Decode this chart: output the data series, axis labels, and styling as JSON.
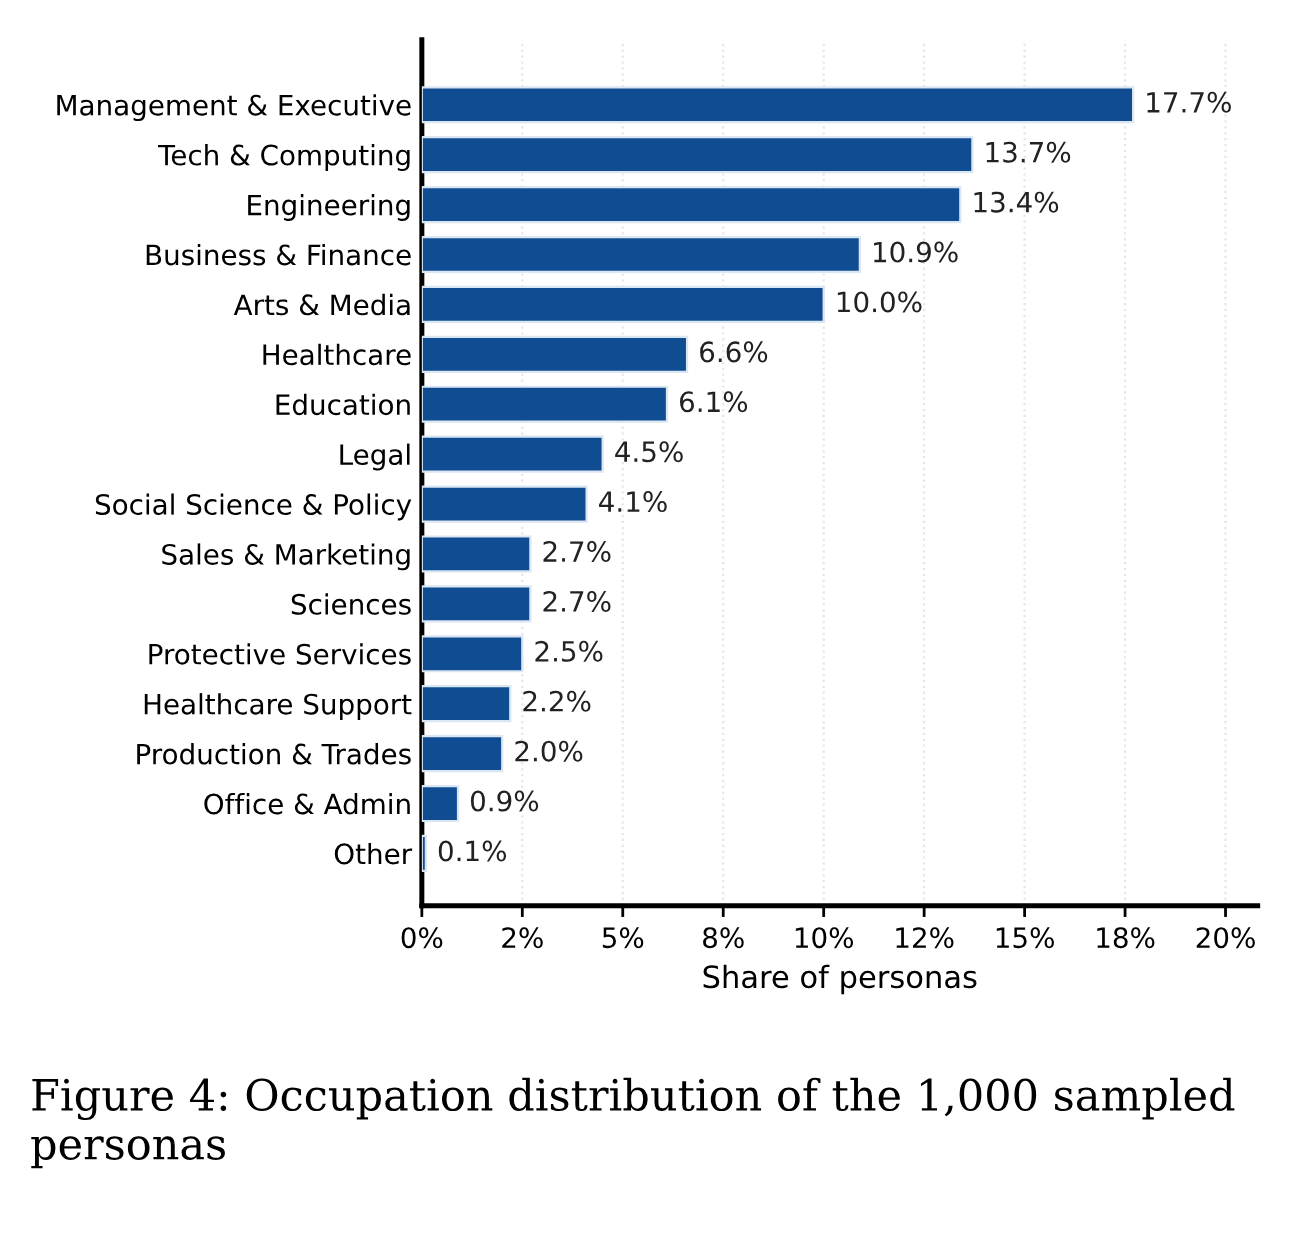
{
  "chart_data": {
    "type": "bar",
    "orientation": "horizontal",
    "xlabel": "Share of personas",
    "categories": [
      "Management & Executive",
      "Tech & Computing",
      "Engineering",
      "Business & Finance",
      "Arts & Media",
      "Healthcare",
      "Education",
      "Legal",
      "Social Science & Policy",
      "Sales & Marketing",
      "Sciences",
      "Protective Services",
      "Healthcare Support",
      "Production & Trades",
      "Office & Admin",
      "Other"
    ],
    "values": [
      17.7,
      13.7,
      13.4,
      10.9,
      10.0,
      6.6,
      6.1,
      4.5,
      4.1,
      2.7,
      2.7,
      2.5,
      2.2,
      2.0,
      0.9,
      0.1
    ],
    "value_labels": [
      "17.7%",
      "13.7%",
      "13.4%",
      "10.9%",
      "10.0%",
      "6.6%",
      "6.1%",
      "4.5%",
      "4.1%",
      "2.7%",
      "2.7%",
      "2.5%",
      "2.2%",
      "2.0%",
      "0.9%",
      "0.1%"
    ],
    "color": "#0f4c92",
    "xlim": [
      0,
      20.8
    ],
    "xticks": [
      {
        "value": 0,
        "label": "0%"
      },
      {
        "value": 2.5,
        "label": "2%"
      },
      {
        "value": 5,
        "label": "5%"
      },
      {
        "value": 7.5,
        "label": "8%"
      },
      {
        "value": 10,
        "label": "10%"
      },
      {
        "value": 12.5,
        "label": "12%"
      },
      {
        "value": 15,
        "label": "15%"
      },
      {
        "value": 17.5,
        "label": "18%"
      },
      {
        "value": 20,
        "label": "20%"
      }
    ],
    "grid": "x",
    "annotations": [
      "Figure 4: Occupation distribution of the 1,000 sampled personas"
    ]
  }
}
